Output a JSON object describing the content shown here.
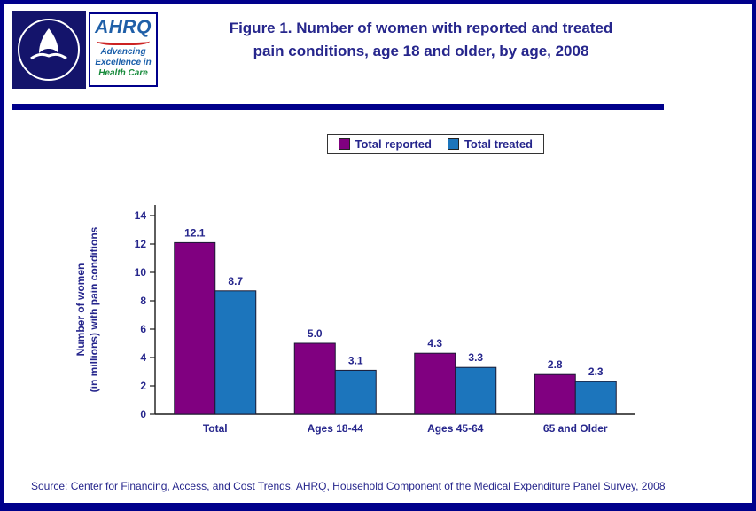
{
  "colors": {
    "navy_text": "#26268C",
    "border_navy": "#00008B",
    "purple": "#800080",
    "blue": "#1C75BC",
    "logo_red": "#CC2222",
    "logo_green": "#168A3A",
    "logo_blue": "#1B5FAA"
  },
  "header": {
    "title_line1": "Figure 1. Number of women with reported and treated",
    "title_line2": "pain conditions, age 18 and older, by age, 2008",
    "ahrq": {
      "name": "AHRQ",
      "tagline_line1": "Advancing",
      "tagline_line2": "Excellence in",
      "tagline_line3": "Health Care"
    }
  },
  "chart_data": {
    "type": "bar",
    "categories": [
      "Total",
      "Ages 18-44",
      "Ages 45-64",
      "65 and Older"
    ],
    "series": [
      {
        "name": "Total reported",
        "color": "#800080",
        "values": [
          12.1,
          5.0,
          4.3,
          2.8
        ]
      },
      {
        "name": "Total treated",
        "color": "#1C75BC",
        "values": [
          8.7,
          3.1,
          3.3,
          2.3
        ]
      }
    ],
    "ylabel_lines": [
      "Number of women",
      "(in millions) with pain conditions"
    ],
    "yticks": [
      0,
      2,
      4,
      6,
      8,
      10,
      12,
      14
    ],
    "ylim": [
      0,
      14
    ],
    "grid": false,
    "legend_position": "top"
  },
  "source": "Source: Center for Financing, Access, and Cost Trends, AHRQ, Household Component of the Medical Expenditure Panel Survey, 2008"
}
